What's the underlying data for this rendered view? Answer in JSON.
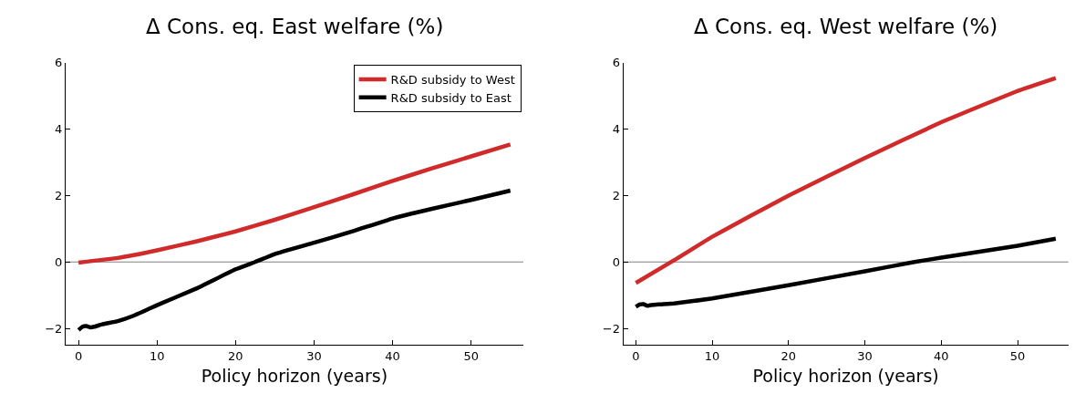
{
  "chart_data": [
    {
      "type": "line",
      "title": "Δ Cons. eq. East welfare (%)",
      "xlabel": "Policy horizon (years)",
      "xlim": [
        -1.65,
        56.65
      ],
      "xticks": [
        0,
        10,
        20,
        30,
        40,
        50
      ],
      "ylim": [
        -2.5,
        6
      ],
      "yticks": [
        {
          "value": -2,
          "label": "−2"
        },
        0,
        2,
        4,
        6
      ],
      "grid": false,
      "legend": "top right",
      "line_style": "solid",
      "marker": "none",
      "ref_lines": [
        {
          "axis": "y",
          "value": 0,
          "color": "#808080"
        }
      ],
      "series": [
        {
          "name": "R&D subsidy to West",
          "color": "#d12a2a",
          "x": [
            0,
            5,
            10,
            15,
            20,
            25,
            30,
            35,
            40,
            45,
            50,
            55
          ],
          "values": [
            -0.02,
            0.12,
            0.35,
            0.62,
            0.92,
            1.27,
            1.65,
            2.04,
            2.44,
            2.82,
            3.18,
            3.54
          ]
        },
        {
          "name": "R&D subsidy to East",
          "color": "#000000",
          "x": [
            0,
            0.5,
            1,
            1.5,
            2,
            3,
            5,
            7,
            10,
            15,
            20,
            22.5,
            25,
            30,
            35,
            40,
            45,
            50,
            55
          ],
          "values": [
            -2.05,
            -1.95,
            -1.93,
            -1.97,
            -1.95,
            -1.88,
            -1.78,
            -1.62,
            -1.3,
            -0.8,
            -0.22,
            0,
            0.24,
            0.58,
            0.93,
            1.31,
            1.6,
            1.87,
            2.15
          ]
        }
      ]
    },
    {
      "type": "line",
      "title": "Δ Cons. eq. West welfare (%)",
      "xlabel": "Policy horizon (years)",
      "xlim": [
        -1.65,
        56.65
      ],
      "xticks": [
        0,
        10,
        20,
        30,
        40,
        50
      ],
      "ylim": [
        -2.5,
        6
      ],
      "yticks": [
        {
          "value": -2,
          "label": "−2"
        },
        0,
        2,
        4,
        6
      ],
      "grid": false,
      "line_style": "solid",
      "marker": "none",
      "ref_lines": [
        {
          "axis": "y",
          "value": 0,
          "color": "#808080"
        }
      ],
      "series": [
        {
          "color": "#d12a2a",
          "x": [
            0,
            5,
            10,
            20,
            30,
            40,
            50,
            55
          ],
          "values": [
            -0.63,
            0.05,
            0.76,
            2.0,
            3.13,
            4.21,
            5.15,
            5.54
          ]
        },
        {
          "color": "#000000",
          "x": [
            0,
            0.5,
            1,
            1.5,
            2,
            3,
            5,
            10,
            20,
            30,
            36.5,
            40,
            50,
            55
          ],
          "values": [
            -1.35,
            -1.28,
            -1.27,
            -1.32,
            -1.3,
            -1.28,
            -1.25,
            -1.1,
            -0.7,
            -0.28,
            0,
            0.13,
            0.49,
            0.7
          ]
        }
      ]
    }
  ]
}
